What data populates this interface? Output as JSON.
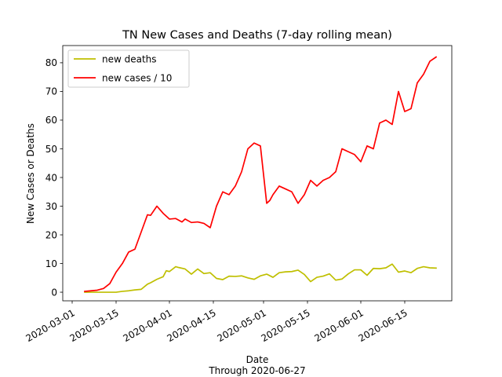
{
  "chart_data": {
    "type": "line",
    "title": "TN New Cases and Deaths (7-day rolling mean)",
    "xlabel": "Date",
    "xlabel_sub": "Through 2020-06-27",
    "ylabel": "New Cases or Deaths",
    "xlim": [
      "2020-02-27",
      "2020-06-30"
    ],
    "ylim": [
      -3,
      86
    ],
    "yticks": [
      0,
      10,
      20,
      30,
      40,
      50,
      60,
      70,
      80
    ],
    "xticks": [
      "2020-03-01",
      "2020-03-15",
      "2020-04-01",
      "2020-04-15",
      "2020-05-01",
      "2020-05-15",
      "2020-06-01",
      "2020-06-15"
    ],
    "grid": false,
    "legend_position": "upper-left",
    "series": [
      {
        "name": "new deaths",
        "color": "#bfbf00",
        "x": [
          "2020-03-05",
          "2020-03-07",
          "2020-03-09",
          "2020-03-11",
          "2020-03-13",
          "2020-03-15",
          "2020-03-17",
          "2020-03-19",
          "2020-03-21",
          "2020-03-23",
          "2020-03-25",
          "2020-03-26",
          "2020-03-28",
          "2020-03-30",
          "2020-03-31",
          "2020-04-01",
          "2020-04-03",
          "2020-04-04",
          "2020-04-06",
          "2020-04-08",
          "2020-04-10",
          "2020-04-12",
          "2020-04-14",
          "2020-04-16",
          "2020-04-18",
          "2020-04-20",
          "2020-04-22",
          "2020-04-24",
          "2020-04-26",
          "2020-04-28",
          "2020-04-30",
          "2020-05-02",
          "2020-05-04",
          "2020-05-06",
          "2020-05-08",
          "2020-05-10",
          "2020-05-12",
          "2020-05-14",
          "2020-05-16",
          "2020-05-18",
          "2020-05-20",
          "2020-05-22",
          "2020-05-24",
          "2020-05-26",
          "2020-05-28",
          "2020-05-30",
          "2020-06-01",
          "2020-06-03",
          "2020-06-05",
          "2020-06-07",
          "2020-06-09",
          "2020-06-11",
          "2020-06-13",
          "2020-06-15",
          "2020-06-17",
          "2020-06-19",
          "2020-06-21",
          "2020-06-23",
          "2020-06-25"
        ],
        "values": [
          0.0,
          0.0,
          0.0,
          0.0,
          0.0,
          0.0,
          0.3,
          0.5,
          0.8,
          1.0,
          2.8,
          3.3,
          4.5,
          5.4,
          7.5,
          7.2,
          8.9,
          8.6,
          8.1,
          6.3,
          8.1,
          6.5,
          6.8,
          4.8,
          4.4,
          5.6,
          5.5,
          5.7,
          5.0,
          4.5,
          5.7,
          6.3,
          5.2,
          6.8,
          7.1,
          7.2,
          7.7,
          6.2,
          3.7,
          5.2,
          5.6,
          6.4,
          4.2,
          4.6,
          6.4,
          7.8,
          7.8,
          5.9,
          8.3,
          8.2,
          8.5,
          9.8,
          7.0,
          7.4,
          6.8,
          8.3,
          8.9,
          8.5,
          8.4
        ]
      },
      {
        "name": "new cases / 10",
        "color": "#ff0000",
        "x": [
          "2020-03-05",
          "2020-03-07",
          "2020-03-09",
          "2020-03-11",
          "2020-03-13",
          "2020-03-15",
          "2020-03-17",
          "2020-03-19",
          "2020-03-21",
          "2020-03-23",
          "2020-03-25",
          "2020-03-26",
          "2020-03-28",
          "2020-03-30",
          "2020-04-01",
          "2020-04-03",
          "2020-04-05",
          "2020-04-06",
          "2020-04-08",
          "2020-04-10",
          "2020-04-12",
          "2020-04-14",
          "2020-04-16",
          "2020-04-18",
          "2020-04-20",
          "2020-04-22",
          "2020-04-24",
          "2020-04-26",
          "2020-04-28",
          "2020-04-30",
          "2020-05-02",
          "2020-05-03",
          "2020-05-04",
          "2020-05-06",
          "2020-05-08",
          "2020-05-10",
          "2020-05-12",
          "2020-05-14",
          "2020-05-16",
          "2020-05-18",
          "2020-05-20",
          "2020-05-22",
          "2020-05-24",
          "2020-05-26",
          "2020-05-28",
          "2020-05-30",
          "2020-06-01",
          "2020-06-03",
          "2020-06-05",
          "2020-06-07",
          "2020-06-09",
          "2020-06-11",
          "2020-06-13",
          "2020-06-15",
          "2020-06-17",
          "2020-06-19",
          "2020-06-21",
          "2020-06-23",
          "2020-06-25"
        ],
        "values": [
          0.3,
          0.5,
          0.7,
          1.3,
          3.0,
          7.0,
          10.0,
          14.0,
          15.0,
          21.0,
          27.0,
          26.8,
          30.0,
          27.5,
          25.5,
          25.7,
          24.5,
          25.5,
          24.3,
          24.5,
          24.0,
          22.5,
          30.0,
          35.0,
          34.0,
          37.0,
          42.0,
          50.0,
          52.0,
          51.0,
          31.0,
          32.0,
          34.0,
          37.0,
          36.0,
          35.0,
          31.0,
          34.0,
          39.0,
          37.0,
          39.0,
          40.0,
          42.0,
          50.0,
          49.0,
          48.0,
          45.5,
          51.0,
          50.0,
          59.0,
          60.0,
          58.5,
          70.0,
          63.0,
          64.0,
          73.0,
          76.0,
          80.5,
          82.0
        ]
      }
    ]
  }
}
